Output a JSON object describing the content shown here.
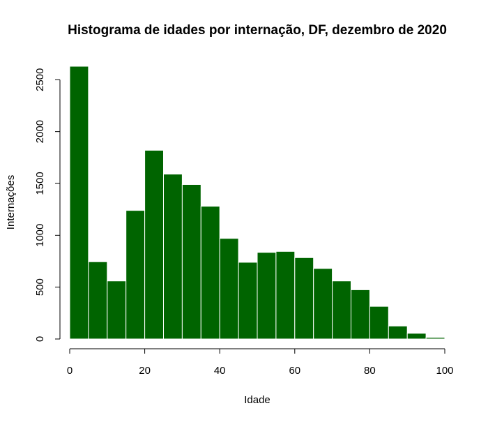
{
  "chart_data": {
    "type": "bar",
    "title": "Histograma de idades por internação, DF, dezembro de 2020",
    "xlabel": "Idade",
    "ylabel": "Internações",
    "bin_edges": [
      0,
      5,
      10,
      15,
      20,
      25,
      30,
      35,
      40,
      45,
      50,
      55,
      60,
      65,
      70,
      75,
      80,
      85,
      90,
      95,
      100
    ],
    "values": [
      2630,
      745,
      560,
      1240,
      1820,
      1590,
      1490,
      1280,
      970,
      740,
      835,
      845,
      785,
      680,
      560,
      475,
      315,
      125,
      55,
      15
    ],
    "xlim": [
      0,
      100
    ],
    "ylim": [
      0,
      2630
    ],
    "x_ticks": [
      0,
      20,
      40,
      60,
      80,
      100
    ],
    "y_ticks": [
      0,
      500,
      1000,
      1500,
      2000,
      2500
    ],
    "x_tick_labels": [
      "0",
      "20",
      "40",
      "60",
      "80",
      "100"
    ],
    "y_tick_labels": [
      "0",
      "500",
      "1000",
      "1500",
      "2000",
      "2500"
    ],
    "bar_color": "#006400",
    "bar_border_color": "#ffffff",
    "grid": false,
    "legend": "none"
  }
}
